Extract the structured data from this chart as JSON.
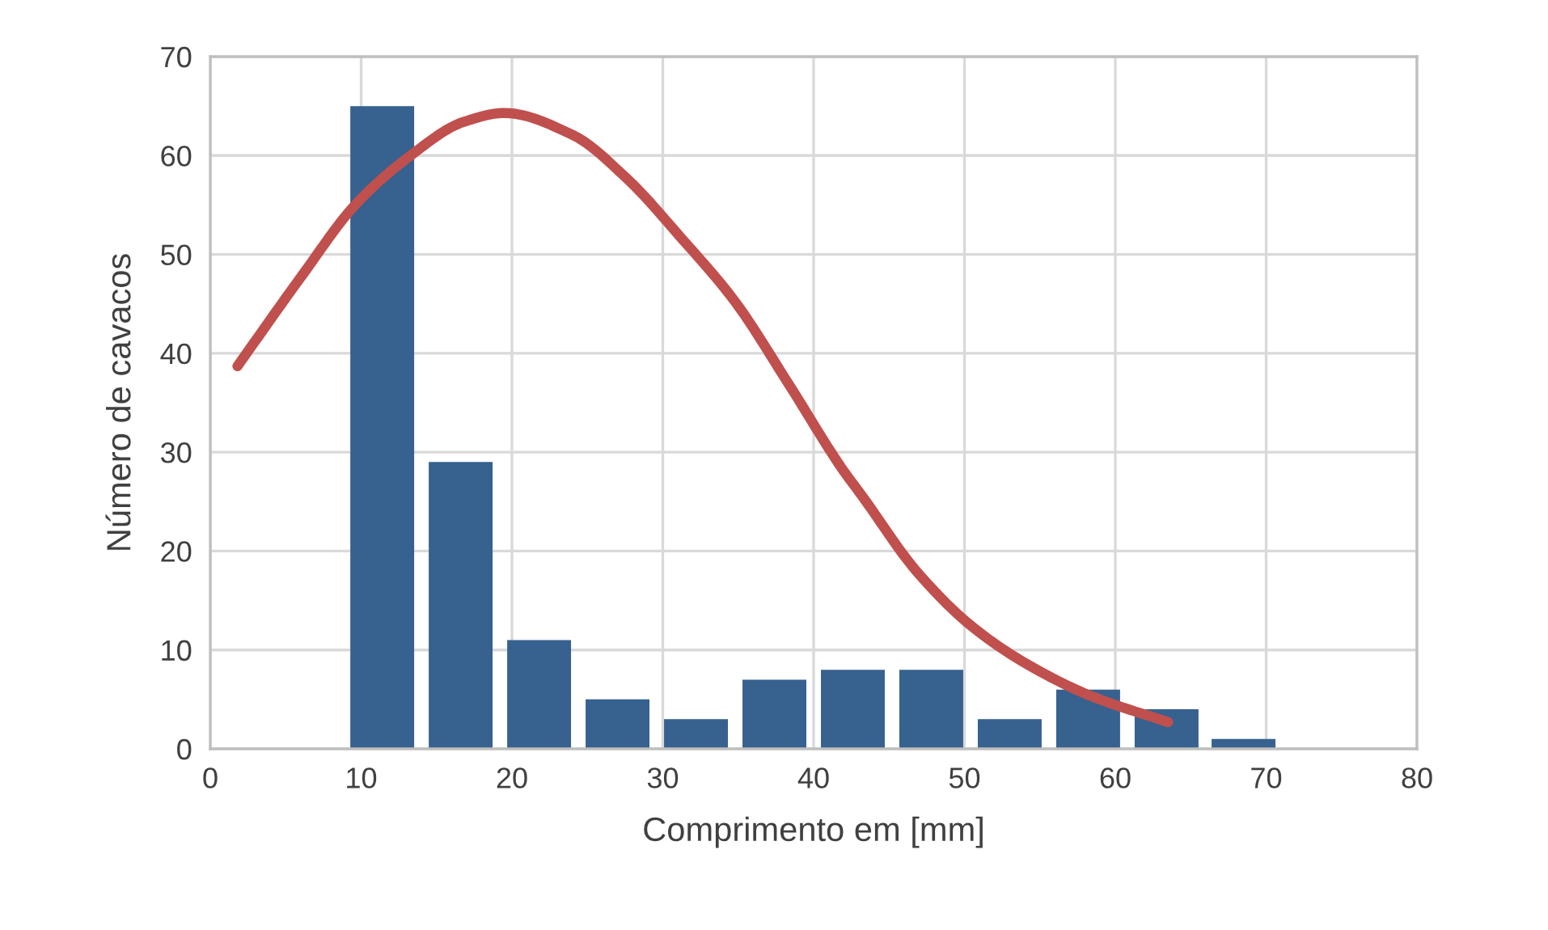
{
  "chart_data": {
    "type": "bar",
    "xlabel": "Comprimento em [mm]",
    "ylabel": "Número de cavacos",
    "xlim": [
      0,
      80
    ],
    "xticks": [
      0,
      10,
      20,
      30,
      40,
      50,
      60,
      70,
      80
    ],
    "ylim": [
      0,
      70
    ],
    "yticks": [
      0,
      10,
      20,
      30,
      40,
      50,
      60,
      70
    ],
    "grid": true,
    "legend": false,
    "series": [
      {
        "color": "#37618f",
        "x": [
          11.4,
          16.6,
          21.8,
          27.0,
          32.2,
          37.4,
          42.6,
          47.8,
          53.0,
          58.2,
          63.4,
          68.5
        ],
        "values": [
          65,
          29,
          11,
          5,
          3,
          7,
          8,
          8,
          3,
          6,
          4,
          1
        ]
      },
      {
        "type": "line",
        "color": "#c0504d",
        "marker": "none",
        "line_style": "solid",
        "x": [
          1.8,
          6.1,
          9.6,
          13.2,
          16.8,
          19.5,
          24.0,
          27.6,
          31.2,
          34.8,
          38.3,
          41.9,
          43.2,
          46.8,
          50.4,
          54.0,
          58.3,
          63.5
        ],
        "values": [
          38.7,
          47.9,
          55.0,
          59.9,
          63.4,
          64.3,
          62.1,
          57.7,
          51.7,
          45.2,
          37.0,
          28.3,
          25.6,
          18.0,
          12.5,
          8.7,
          5.4,
          2.7
        ]
      }
    ]
  }
}
